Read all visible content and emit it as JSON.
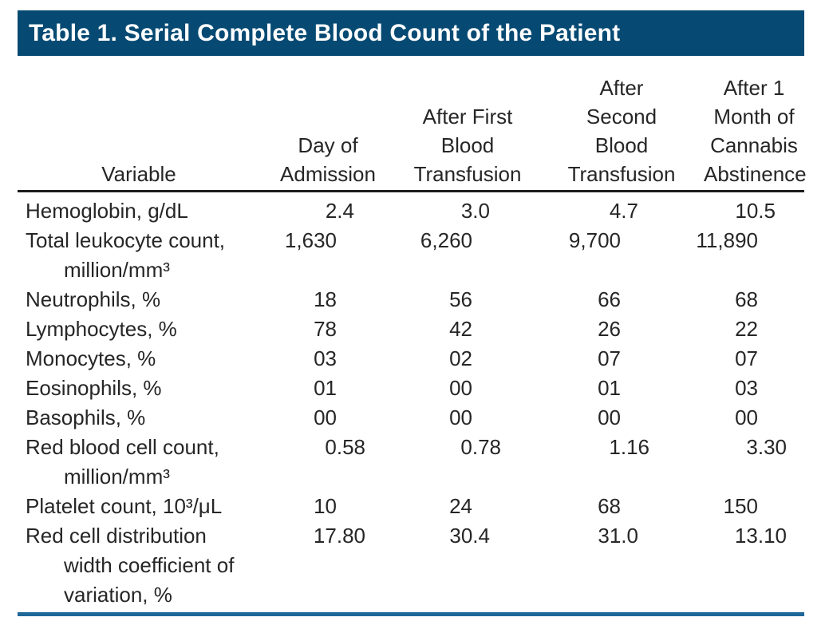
{
  "title": "Table 1. Serial Complete Blood Count of the Patient",
  "colors": {
    "title_bar": "#064a73",
    "header_rule": "#1c1c1c",
    "bottom_rule": "#1e6798"
  },
  "table": {
    "headers": [
      "Variable",
      "Day of\nAdmission",
      "After First\nBlood\nTransfusion",
      "After\nSecond\nBlood\nTransfusion",
      "After 1\nMonth of\nCannabis\nAbstinence"
    ],
    "rows": [
      {
        "label": "Hemoglobin, g/dL",
        "values": [
          "2.4",
          "3.0",
          "4.7",
          "10.5"
        ]
      },
      {
        "label": "Total leukocyte count,\nmillion/mm³",
        "values": [
          "1,630",
          "6,260",
          "9,700",
          "11,890"
        ]
      },
      {
        "label": "Neutrophils, %",
        "values": [
          "18",
          "56",
          "66",
          "68"
        ]
      },
      {
        "label": "Lymphocytes, %",
        "values": [
          "78",
          "42",
          "26",
          "22"
        ]
      },
      {
        "label": "Monocytes, %",
        "values": [
          "03",
          "02",
          "07",
          "07"
        ]
      },
      {
        "label": "Eosinophils, %",
        "values": [
          "01",
          "00",
          "01",
          "03"
        ]
      },
      {
        "label": "Basophils, %",
        "values": [
          "00",
          "00",
          "00",
          "00"
        ]
      },
      {
        "label": "Red blood cell count,\nmillion/mm³",
        "values": [
          "0.58",
          "0.78",
          "1.16",
          "3.30"
        ]
      },
      {
        "label": "Platelet count, 10³/μL",
        "values": [
          "10",
          "24",
          "68",
          "150"
        ]
      },
      {
        "label": "Red cell distribution\nwidth coefficient of\nvariation, %",
        "values": [
          "17.80",
          "30.4",
          "31.0",
          "13.10"
        ]
      }
    ]
  }
}
